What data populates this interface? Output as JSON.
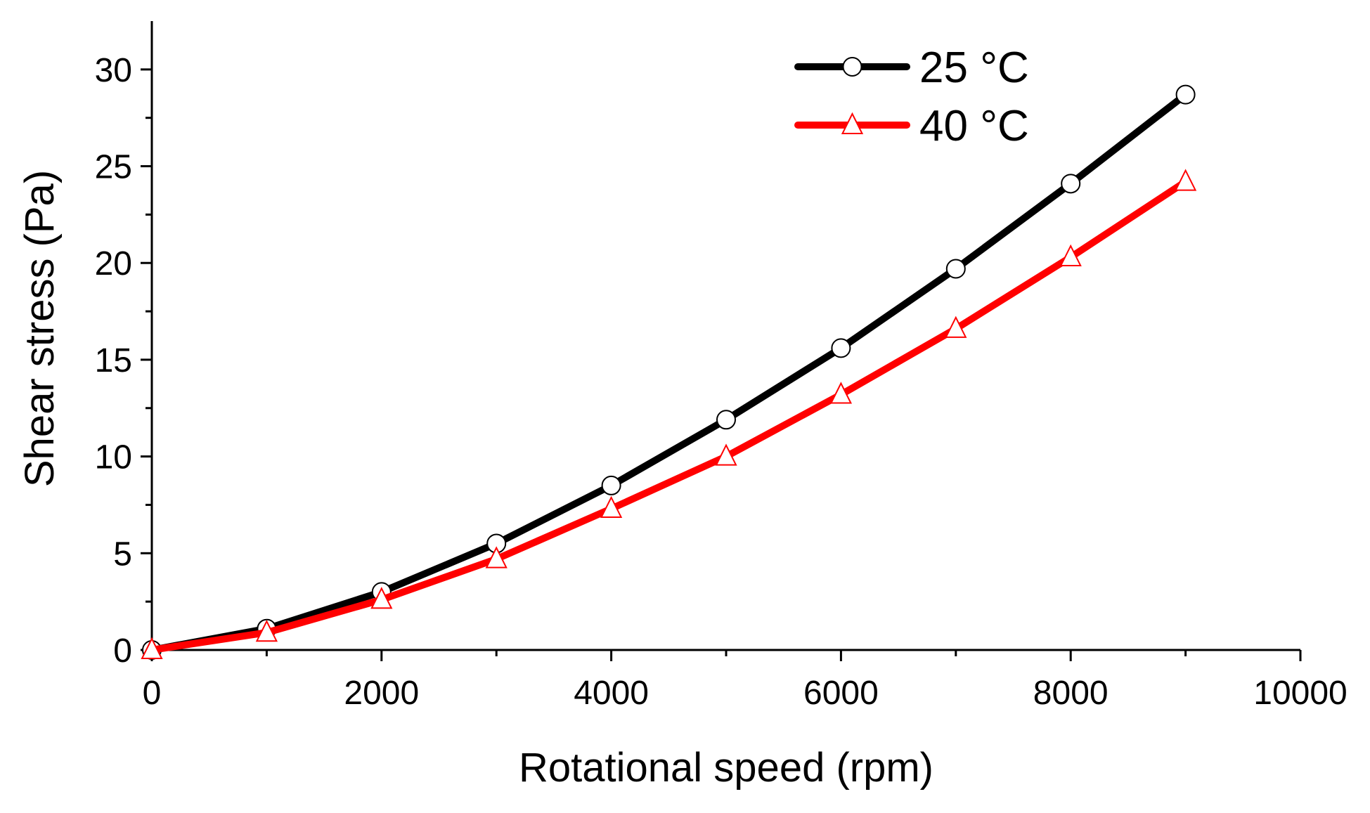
{
  "chart_data": {
    "type": "line",
    "title": "",
    "xlabel": "Rotational speed (rpm)",
    "ylabel": "Shear stress (Pa)",
    "xlim": [
      0,
      10000
    ],
    "ylim": [
      0,
      32.5
    ],
    "xticks": [
      0,
      2000,
      4000,
      6000,
      8000,
      10000
    ],
    "xtick_labels": [
      "0",
      "2000",
      "4000",
      "6000",
      "8000",
      "10000"
    ],
    "yticks": [
      0,
      5,
      10,
      15,
      20,
      25,
      30
    ],
    "ytick_labels": [
      "0",
      "5",
      "10",
      "15",
      "20",
      "25",
      "30"
    ],
    "x_minor_step": 1000,
    "y_minor_step": 2.5,
    "grid": false,
    "legend_position": "top-right",
    "x": [
      0,
      1000,
      2000,
      3000,
      4000,
      5000,
      6000,
      7000,
      8000,
      9000
    ],
    "series": [
      {
        "name": "25 °C",
        "color": "#000000",
        "marker": "circle",
        "marker_fill": "#ffffff",
        "marker_stroke": "#000000",
        "values": [
          0,
          1.1,
          3.0,
          5.5,
          8.5,
          11.9,
          15.6,
          19.7,
          24.1,
          28.7
        ]
      },
      {
        "name": "40 °C",
        "color": "#ff0000",
        "marker": "triangle",
        "marker_fill": "#ffffff",
        "marker_stroke": "#ff0000",
        "values": [
          0,
          0.9,
          2.6,
          4.7,
          7.3,
          10.0,
          13.2,
          16.6,
          20.3,
          24.2
        ]
      }
    ]
  }
}
